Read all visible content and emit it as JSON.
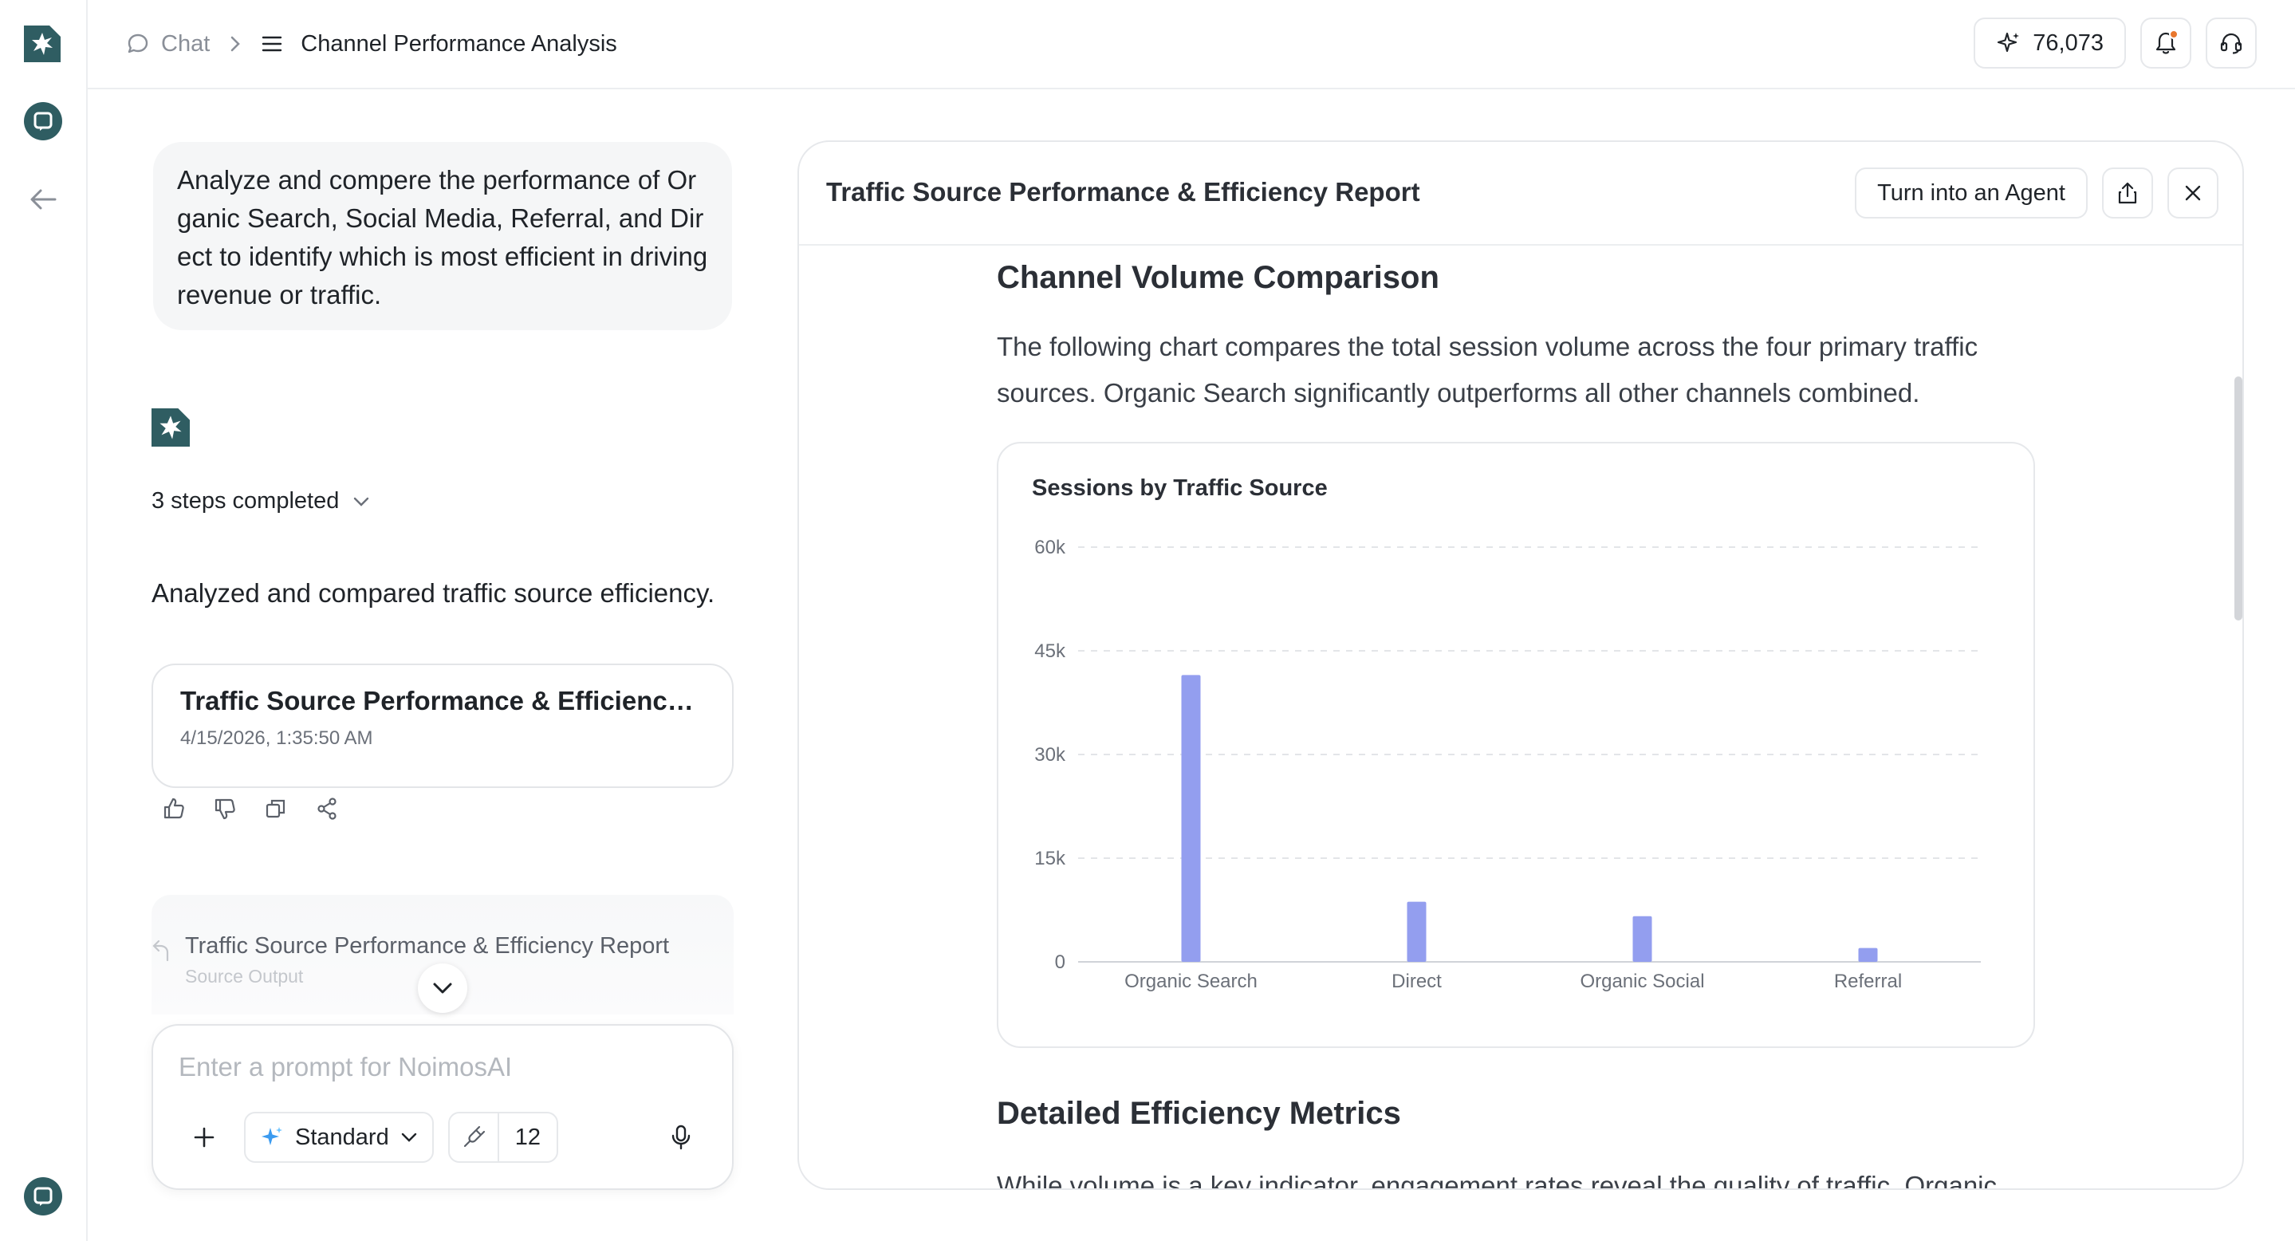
{
  "breadcrumb": {
    "chat_label": "Chat",
    "current": "Channel Performance Analysis"
  },
  "header": {
    "credits": "76,073"
  },
  "chat": {
    "user_message": "Analyze and compere the performance of Organic Search, Social Media, Referral, and Direct to identify which is most efficient in driving revenue or traffic.",
    "steps_label": "3 steps completed",
    "ai_message": "Analyzed and compared traffic source efficiency.",
    "report_card": {
      "title": "Traffic Source Performance & Efficiency ...",
      "date": "4/15/2026, 1:35:50 AM"
    },
    "source": {
      "title": "Traffic Source Performance & Efficiency Report",
      "subtitle": "Source Output"
    }
  },
  "composer": {
    "placeholder": "Enter a prompt for NoimosAI",
    "mode": "Standard",
    "tools_count": "12"
  },
  "panel": {
    "title": "Traffic Source Performance & Efficiency Report",
    "agent_button": "Turn into an Agent",
    "section1": {
      "title": "Channel Volume Comparison",
      "paragraph": "The following chart compares the total session volume across the four primary traffic sources. Organic Search significantly outperforms all other channels combined."
    },
    "section2": {
      "title": "Detailed Efficiency Metrics",
      "paragraph": "While volume is a key indicator, engagement rates reveal the quality of traffic. Organic"
    }
  },
  "colors": {
    "brand": "#2f5d62",
    "bar": "#939eef",
    "notification": "#e8772e"
  },
  "chart_data": {
    "type": "bar",
    "title": "Sessions by Traffic Source",
    "categories": [
      "Organic Search",
      "Direct",
      "Organic Social",
      "Referral"
    ],
    "values": [
      41500,
      8700,
      6600,
      2000
    ],
    "yticks": [
      "0",
      "15k",
      "30k",
      "45k",
      "60k"
    ],
    "ylim": [
      0,
      60000
    ],
    "grid": true,
    "legend": "none"
  }
}
